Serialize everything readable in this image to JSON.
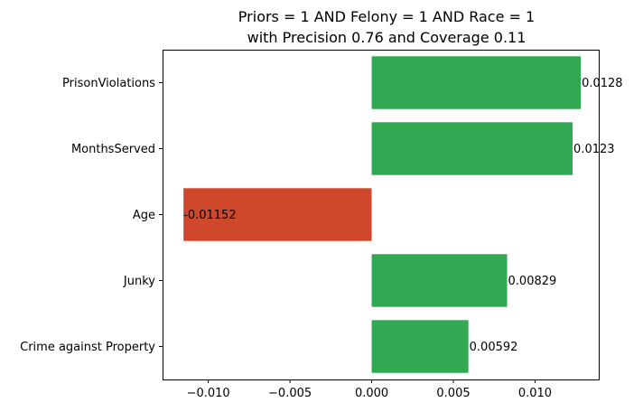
{
  "chart_data": {
    "type": "bar",
    "orientation": "horizontal",
    "title": "Priors = 1 AND Felony = 1 AND Race = 1",
    "subtitle": "with Precision 0.76 and Coverage 0.11",
    "categories": [
      "PrisonViolations",
      "MonthsServed",
      "Age",
      "Junky",
      "Crime against Property"
    ],
    "values": [
      0.0128,
      0.0123,
      -0.01152,
      0.00829,
      0.00592
    ],
    "value_labels": [
      "0.0128",
      "0.0123",
      "-0.01152",
      "0.00829",
      "0.00592"
    ],
    "xlim": [
      -0.0128,
      0.0139
    ],
    "xticks": [
      -0.01,
      -0.005,
      0.0,
      0.005,
      0.01
    ],
    "xtick_labels": [
      "−0.010",
      "−0.005",
      "0.000",
      "0.005",
      "0.010"
    ],
    "positive_color": "#33a853",
    "negative_color": "#d0482c",
    "grid": false,
    "legend": "none"
  }
}
